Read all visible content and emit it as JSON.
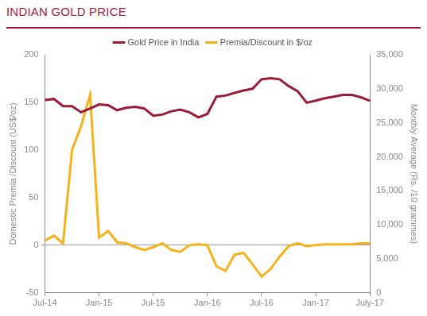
{
  "chart_data": {
    "type": "line",
    "title": "INDIAN GOLD PRICE",
    "categories": [
      "Jul-14",
      null,
      null,
      null,
      null,
      null,
      "Jan-15",
      null,
      null,
      null,
      null,
      null,
      "Jul-15",
      null,
      null,
      null,
      null,
      null,
      "Jan-16",
      null,
      null,
      null,
      null,
      null,
      "Jul-16",
      null,
      null,
      null,
      null,
      null,
      "Jan-17",
      null,
      null,
      null,
      null,
      null,
      "July-17"
    ],
    "series": [
      {
        "name": "Gold Price in India",
        "color": "#9b1b36",
        "axis": "y2",
        "marker": "none",
        "line_style": "solid",
        "values": [
          28350,
          28500,
          27450,
          27450,
          26550,
          27100,
          27700,
          27600,
          26850,
          27200,
          27350,
          27100,
          26050,
          26200,
          26700,
          26950,
          26550,
          25800,
          26300,
          28850,
          29000,
          29400,
          29750,
          30000,
          31400,
          31550,
          31400,
          30400,
          29650,
          27950,
          28250,
          28600,
          28850,
          29100,
          29100,
          28750,
          28250
        ]
      },
      {
        "name": "Premia/Discount in $/oz",
        "color": "#f7b21b",
        "axis": "y",
        "marker": "none",
        "line_style": "solid",
        "values": [
          5,
          10,
          2,
          100,
          125,
          158,
          8,
          15,
          3,
          2,
          -2,
          -5,
          -2,
          2,
          -5,
          -7,
          0,
          1,
          0,
          -22,
          -27,
          -10,
          -8,
          -20,
          -33,
          -25,
          -12,
          -1,
          2,
          -1,
          0,
          1,
          1,
          1,
          1,
          2,
          2
        ]
      }
    ],
    "y_label": "Domestic Premia /Discount (US$/oz)",
    "y2_label": "Monthly Average (Rs. /10 grammes)",
    "ylim": [
      -50,
      200
    ],
    "yticks": [
      -50,
      0,
      50,
      100,
      150,
      200
    ],
    "y2lim": [
      0,
      35000
    ],
    "y2ticks": [
      0,
      {
        "value": 5000,
        "label": "5,000"
      },
      {
        "value": 10000,
        "label": "10,000"
      },
      {
        "value": 15000,
        "label": "15,000"
      },
      {
        "value": 20000,
        "label": "20,000"
      },
      {
        "value": 25000,
        "label": "25,000"
      },
      {
        "value": 30000,
        "label": "30,000"
      },
      {
        "value": 35000,
        "label": "35,000"
      }
    ],
    "grid": false,
    "legend": "top"
  }
}
